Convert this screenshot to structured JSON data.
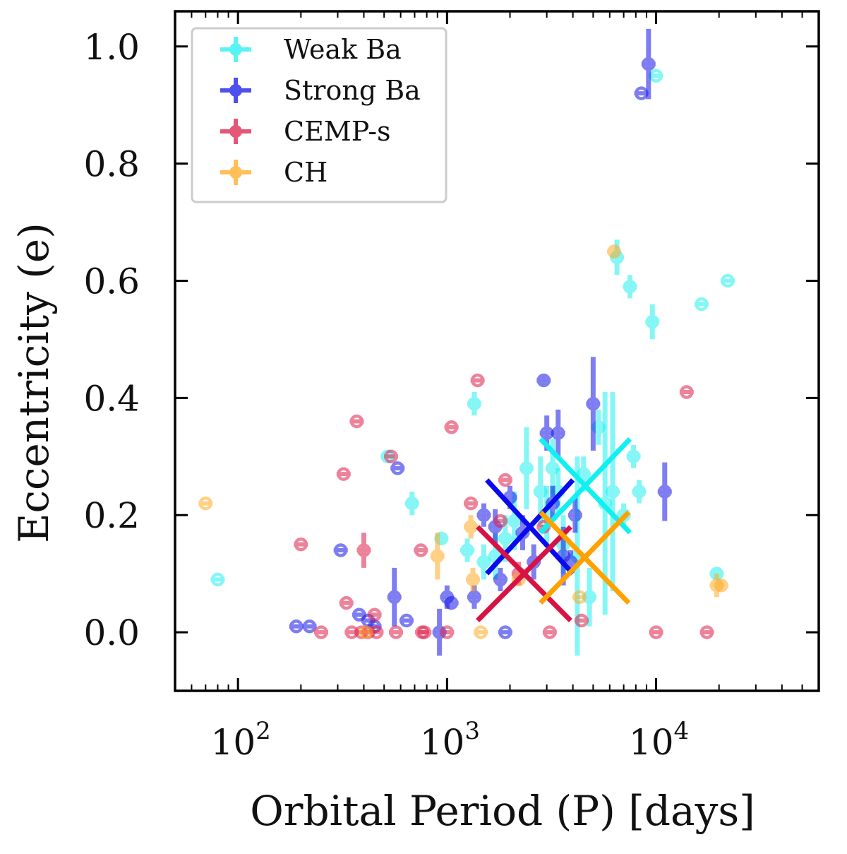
{
  "chart_data": {
    "type": "scatter",
    "xscale": "log",
    "xlim": [
      50,
      60000
    ],
    "ylim": [
      -0.1,
      1.06
    ],
    "xlabel": "Orbital Period (P) [days]",
    "ylabel": "Eccentricity (e)",
    "yticks": [
      {
        "value": 0.0,
        "label": "0.0"
      },
      {
        "value": 0.2,
        "label": "0.2"
      },
      {
        "value": 0.4,
        "label": "0.4"
      },
      {
        "value": 0.6,
        "label": "0.6"
      },
      {
        "value": 0.8,
        "label": "0.8"
      },
      {
        "value": 1.0,
        "label": "1.0"
      }
    ],
    "xticks": [
      {
        "value": 100,
        "base": "10",
        "exp": "2"
      },
      {
        "value": 1000,
        "base": "10",
        "exp": "3"
      },
      {
        "value": 10000,
        "base": "10",
        "exp": "4"
      }
    ],
    "legend": {
      "position": "top-left"
    },
    "series": [
      {
        "name": "Weak Ba",
        "color": "#22f0f0",
        "points": [
          [
            80,
            0.09,
            0
          ],
          [
            520,
            0.3,
            0
          ],
          [
            680,
            0.22,
            0.02
          ],
          [
            940,
            0.16,
            0.01
          ],
          [
            1250,
            0.14,
            0.02
          ],
          [
            1350,
            0.39,
            0.02
          ],
          [
            1500,
            0.12,
            0.03
          ],
          [
            1700,
            0.13,
            0.04
          ],
          [
            1900,
            0.16,
            0.04
          ],
          [
            2100,
            0.19,
            0.05
          ],
          [
            2400,
            0.28,
            0.07
          ],
          [
            2800,
            0.24,
            0.06
          ],
          [
            3000,
            0.2,
            0.05
          ],
          [
            3200,
            0.28,
            0.05
          ],
          [
            3400,
            0.24,
            0.04
          ],
          [
            3600,
            0.15,
            0.05
          ],
          [
            4200,
            0.13,
            0.17
          ],
          [
            4500,
            0.27,
            0.03
          ],
          [
            4800,
            0.06,
            0.05
          ],
          [
            5300,
            0.35,
            0.03
          ],
          [
            5700,
            0.22,
            0.19
          ],
          [
            6200,
            0.24,
            0.17
          ],
          [
            6500,
            0.64,
            0.03
          ],
          [
            7000,
            0.2,
            0.02
          ],
          [
            7500,
            0.59,
            0.02
          ],
          [
            7800,
            0.3,
            0.02
          ],
          [
            8300,
            0.24,
            0.02
          ],
          [
            9600,
            0.53,
            0.03
          ],
          [
            10000,
            0.95,
            0
          ],
          [
            16500,
            0.56,
            0
          ],
          [
            19500,
            0.1,
            0.01
          ],
          [
            22000,
            0.6,
            0
          ]
        ]
      },
      {
        "name": "Strong Ba",
        "color": "#1515e8",
        "points": [
          [
            190,
            0.01,
            0
          ],
          [
            220,
            0.01,
            0
          ],
          [
            310,
            0.14,
            0
          ],
          [
            380,
            0.03,
            0
          ],
          [
            420,
            0.02,
            0
          ],
          [
            450,
            0.01,
            0
          ],
          [
            560,
            0.06,
            0.05
          ],
          [
            580,
            0.28,
            0
          ],
          [
            640,
            0.02,
            0
          ],
          [
            920,
            0.0,
            0.04
          ],
          [
            1000,
            0.06,
            0.02
          ],
          [
            1050,
            0.05,
            0.01
          ],
          [
            1350,
            0.06,
            0.02
          ],
          [
            1500,
            0.2,
            0.02
          ],
          [
            1700,
            0.18,
            0.03
          ],
          [
            1800,
            0.09,
            0.02
          ],
          [
            1900,
            0.0,
            0
          ],
          [
            2000,
            0.23,
            0.02
          ],
          [
            2300,
            0.17,
            0.03
          ],
          [
            2600,
            0.12,
            0.03
          ],
          [
            2900,
            0.43,
            0.01
          ],
          [
            3000,
            0.34,
            0.03
          ],
          [
            3200,
            0.22,
            0.03
          ],
          [
            3400,
            0.34,
            0.04
          ],
          [
            3600,
            0.13,
            0.05
          ],
          [
            3900,
            0.12,
            0.02
          ],
          [
            4100,
            0.2,
            0.03
          ],
          [
            5000,
            0.39,
            0.08
          ],
          [
            8500,
            0.92,
            0
          ],
          [
            9200,
            0.97,
            0.06
          ],
          [
            11000,
            0.24,
            0.05
          ]
        ]
      },
      {
        "name": "CEMP-s",
        "color": "#dd1f4a",
        "points": [
          [
            200,
            0.15,
            0
          ],
          [
            250,
            0.0,
            0
          ],
          [
            320,
            0.27,
            0
          ],
          [
            330,
            0.05,
            0
          ],
          [
            350,
            0.0,
            0
          ],
          [
            370,
            0.36,
            0
          ],
          [
            390,
            0.0,
            0
          ],
          [
            400,
            0.14,
            0.03
          ],
          [
            420,
            0.0,
            0
          ],
          [
            450,
            0.03,
            0
          ],
          [
            460,
            0.0,
            0
          ],
          [
            540,
            0.3,
            0
          ],
          [
            570,
            0.0,
            0
          ],
          [
            750,
            0.14,
            0
          ],
          [
            760,
            0.0,
            0
          ],
          [
            780,
            0.0,
            0
          ],
          [
            1000,
            0.0,
            0
          ],
          [
            1050,
            0.35,
            0
          ],
          [
            1300,
            0.22,
            0
          ],
          [
            1400,
            0.43,
            0
          ],
          [
            1800,
            0.19,
            0
          ],
          [
            1900,
            0.26,
            0
          ],
          [
            2200,
            0.1,
            0.02
          ],
          [
            2900,
            0.18,
            0
          ],
          [
            3100,
            0.0,
            0
          ],
          [
            4400,
            0.02,
            0
          ],
          [
            10000,
            0.0,
            0
          ],
          [
            14000,
            0.41,
            0
          ],
          [
            17500,
            0.0,
            0
          ]
        ]
      },
      {
        "name": "CH",
        "color": "#ffaa22",
        "points": [
          [
            70,
            0.22,
            0
          ],
          [
            410,
            0.0,
            0
          ],
          [
            900,
            0.13,
            0.04
          ],
          [
            1300,
            0.18,
            0.02
          ],
          [
            1330,
            0.09,
            0.02
          ],
          [
            1450,
            0.0,
            0
          ],
          [
            2200,
            0.09,
            0
          ],
          [
            4300,
            0.06,
            0
          ],
          [
            6300,
            0.65,
            0.01
          ],
          [
            19500,
            0.08,
            0.02
          ],
          [
            20500,
            0.08,
            0.01
          ]
        ]
      }
    ],
    "centroids": [
      {
        "name": "Weak Ba",
        "color": "#11f0f0",
        "center": [
          4700,
          0.255
        ],
        "x_range": [
          2800,
          7500
        ],
        "e_range": [
          0.17,
          0.33
        ]
      },
      {
        "name": "Strong Ba",
        "color": "#0a0aee",
        "center": [
          2400,
          0.18
        ],
        "x_range": [
          1550,
          4000
        ],
        "e_range": [
          0.1,
          0.26
        ]
      },
      {
        "name": "CEMP-s",
        "color": "#d71245",
        "center": [
          2300,
          0.1
        ],
        "x_range": [
          1400,
          3900
        ],
        "e_range": [
          0.02,
          0.18
        ]
      },
      {
        "name": "CH",
        "color": "#ffa200",
        "center": [
          4600,
          0.125
        ],
        "x_range": [
          2800,
          7400
        ],
        "e_range": [
          0.05,
          0.205
        ]
      }
    ]
  }
}
